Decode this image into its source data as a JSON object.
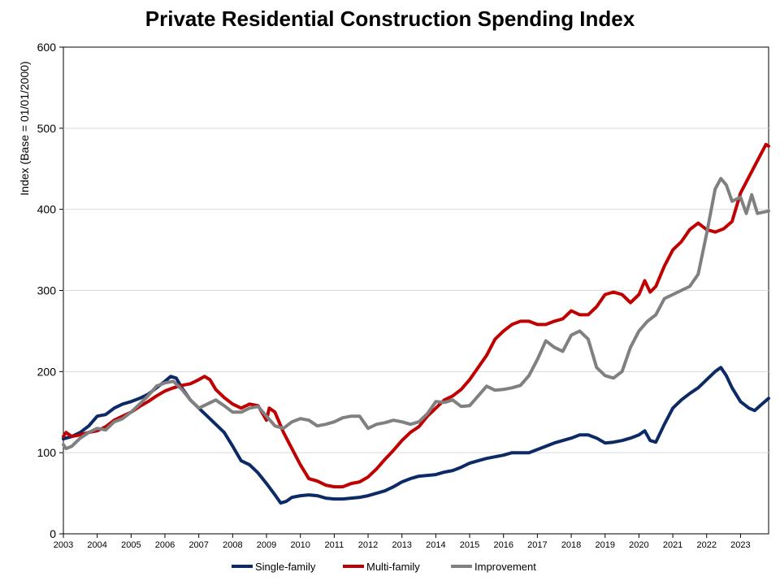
{
  "chart_data": {
    "type": "line",
    "title": "Private Residential Construction Spending Index",
    "xlabel": "",
    "ylabel": "Index  (Base = 01/01/2000)",
    "ylim": [
      0,
      600
    ],
    "yticks": [
      0,
      100,
      200,
      300,
      400,
      500,
      600
    ],
    "xlim": [
      2003.0,
      2023.83
    ],
    "xticks": [
      "2003",
      "2004",
      "2005",
      "2006",
      "2007",
      "2008",
      "2009",
      "2010",
      "2011",
      "2012",
      "2013",
      "2014",
      "2015",
      "2016",
      "2017",
      "2018",
      "2019",
      "2020",
      "2021",
      "2022",
      "2023"
    ],
    "grid": "horizontal",
    "legend_position": "bottom",
    "series": [
      {
        "name": "Single-family",
        "color": "#0c2a66",
        "points": [
          [
            2003.0,
            117
          ],
          [
            2003.25,
            120
          ],
          [
            2003.5,
            125
          ],
          [
            2003.75,
            133
          ],
          [
            2004.0,
            145
          ],
          [
            2004.25,
            147
          ],
          [
            2004.5,
            155
          ],
          [
            2004.75,
            160
          ],
          [
            2005.0,
            163
          ],
          [
            2005.25,
            167
          ],
          [
            2005.5,
            172
          ],
          [
            2005.75,
            180
          ],
          [
            2006.0,
            188
          ],
          [
            2006.17,
            194
          ],
          [
            2006.33,
            192
          ],
          [
            2006.5,
            180
          ],
          [
            2006.75,
            165
          ],
          [
            2007.0,
            155
          ],
          [
            2007.25,
            145
          ],
          [
            2007.5,
            135
          ],
          [
            2007.75,
            125
          ],
          [
            2008.0,
            108
          ],
          [
            2008.25,
            90
          ],
          [
            2008.5,
            85
          ],
          [
            2008.75,
            75
          ],
          [
            2009.0,
            62
          ],
          [
            2009.25,
            48
          ],
          [
            2009.42,
            38
          ],
          [
            2009.58,
            40
          ],
          [
            2009.75,
            45
          ],
          [
            2010.0,
            47
          ],
          [
            2010.25,
            48
          ],
          [
            2010.5,
            47
          ],
          [
            2010.75,
            44
          ],
          [
            2011.0,
            43
          ],
          [
            2011.25,
            43
          ],
          [
            2011.5,
            44
          ],
          [
            2011.75,
            45
          ],
          [
            2012.0,
            47
          ],
          [
            2012.25,
            50
          ],
          [
            2012.5,
            53
          ],
          [
            2012.75,
            58
          ],
          [
            2013.0,
            64
          ],
          [
            2013.25,
            68
          ],
          [
            2013.5,
            71
          ],
          [
            2013.75,
            72
          ],
          [
            2014.0,
            73
          ],
          [
            2014.25,
            76
          ],
          [
            2014.5,
            78
          ],
          [
            2014.75,
            82
          ],
          [
            2015.0,
            87
          ],
          [
            2015.25,
            90
          ],
          [
            2015.5,
            93
          ],
          [
            2015.75,
            95
          ],
          [
            2016.0,
            97
          ],
          [
            2016.25,
            100
          ],
          [
            2016.5,
            100
          ],
          [
            2016.75,
            100
          ],
          [
            2017.0,
            104
          ],
          [
            2017.25,
            108
          ],
          [
            2017.5,
            112
          ],
          [
            2017.75,
            115
          ],
          [
            2018.0,
            118
          ],
          [
            2018.25,
            122
          ],
          [
            2018.5,
            122
          ],
          [
            2018.75,
            118
          ],
          [
            2019.0,
            112
          ],
          [
            2019.25,
            113
          ],
          [
            2019.5,
            115
          ],
          [
            2019.75,
            118
          ],
          [
            2020.0,
            122
          ],
          [
            2020.17,
            127
          ],
          [
            2020.33,
            115
          ],
          [
            2020.5,
            113
          ],
          [
            2020.75,
            135
          ],
          [
            2021.0,
            155
          ],
          [
            2021.25,
            165
          ],
          [
            2021.5,
            173
          ],
          [
            2021.75,
            180
          ],
          [
            2022.0,
            190
          ],
          [
            2022.25,
            200
          ],
          [
            2022.42,
            205
          ],
          [
            2022.58,
            195
          ],
          [
            2022.75,
            180
          ],
          [
            2023.0,
            163
          ],
          [
            2023.25,
            155
          ],
          [
            2023.42,
            152
          ],
          [
            2023.58,
            158
          ],
          [
            2023.83,
            167
          ]
        ]
      },
      {
        "name": "Multi-family",
        "color": "#c00000",
        "points": [
          [
            2003.0,
            120
          ],
          [
            2003.08,
            125
          ],
          [
            2003.25,
            120
          ],
          [
            2003.5,
            122
          ],
          [
            2003.75,
            125
          ],
          [
            2004.0,
            127
          ],
          [
            2004.25,
            132
          ],
          [
            2004.5,
            140
          ],
          [
            2004.75,
            145
          ],
          [
            2005.0,
            150
          ],
          [
            2005.25,
            157
          ],
          [
            2005.5,
            163
          ],
          [
            2005.75,
            170
          ],
          [
            2006.0,
            176
          ],
          [
            2006.25,
            180
          ],
          [
            2006.5,
            183
          ],
          [
            2006.75,
            185
          ],
          [
            2007.0,
            190
          ],
          [
            2007.17,
            194
          ],
          [
            2007.33,
            190
          ],
          [
            2007.5,
            178
          ],
          [
            2007.75,
            168
          ],
          [
            2008.0,
            160
          ],
          [
            2008.25,
            155
          ],
          [
            2008.5,
            160
          ],
          [
            2008.75,
            158
          ],
          [
            2009.0,
            140
          ],
          [
            2009.08,
            155
          ],
          [
            2009.25,
            150
          ],
          [
            2009.5,
            125
          ],
          [
            2009.75,
            105
          ],
          [
            2010.0,
            85
          ],
          [
            2010.25,
            68
          ],
          [
            2010.5,
            65
          ],
          [
            2010.75,
            60
          ],
          [
            2011.0,
            58
          ],
          [
            2011.25,
            58
          ],
          [
            2011.5,
            62
          ],
          [
            2011.75,
            64
          ],
          [
            2012.0,
            70
          ],
          [
            2012.25,
            80
          ],
          [
            2012.5,
            92
          ],
          [
            2012.75,
            103
          ],
          [
            2013.0,
            115
          ],
          [
            2013.25,
            125
          ],
          [
            2013.5,
            132
          ],
          [
            2013.75,
            145
          ],
          [
            2014.0,
            155
          ],
          [
            2014.25,
            165
          ],
          [
            2014.5,
            170
          ],
          [
            2014.75,
            178
          ],
          [
            2015.0,
            190
          ],
          [
            2015.25,
            205
          ],
          [
            2015.5,
            220
          ],
          [
            2015.75,
            240
          ],
          [
            2016.0,
            250
          ],
          [
            2016.25,
            258
          ],
          [
            2016.5,
            262
          ],
          [
            2016.75,
            262
          ],
          [
            2017.0,
            258
          ],
          [
            2017.25,
            258
          ],
          [
            2017.5,
            262
          ],
          [
            2017.75,
            265
          ],
          [
            2018.0,
            275
          ],
          [
            2018.25,
            270
          ],
          [
            2018.5,
            270
          ],
          [
            2018.75,
            280
          ],
          [
            2019.0,
            295
          ],
          [
            2019.25,
            298
          ],
          [
            2019.5,
            295
          ],
          [
            2019.75,
            285
          ],
          [
            2020.0,
            295
          ],
          [
            2020.17,
            312
          ],
          [
            2020.33,
            298
          ],
          [
            2020.5,
            305
          ],
          [
            2020.75,
            330
          ],
          [
            2021.0,
            350
          ],
          [
            2021.25,
            360
          ],
          [
            2021.5,
            375
          ],
          [
            2021.75,
            383
          ],
          [
            2022.0,
            375
          ],
          [
            2022.25,
            372
          ],
          [
            2022.5,
            376
          ],
          [
            2022.75,
            385
          ],
          [
            2023.0,
            420
          ],
          [
            2023.25,
            440
          ],
          [
            2023.5,
            460
          ],
          [
            2023.75,
            480
          ],
          [
            2023.83,
            478
          ]
        ]
      },
      {
        "name": "Improvement",
        "color": "#808080",
        "points": [
          [
            2003.0,
            110
          ],
          [
            2003.08,
            105
          ],
          [
            2003.25,
            108
          ],
          [
            2003.5,
            118
          ],
          [
            2003.75,
            125
          ],
          [
            2004.0,
            130
          ],
          [
            2004.25,
            128
          ],
          [
            2004.5,
            138
          ],
          [
            2004.75,
            142
          ],
          [
            2005.0,
            150
          ],
          [
            2005.25,
            160
          ],
          [
            2005.5,
            170
          ],
          [
            2005.75,
            182
          ],
          [
            2006.0,
            186
          ],
          [
            2006.25,
            188
          ],
          [
            2006.5,
            178
          ],
          [
            2006.75,
            165
          ],
          [
            2007.0,
            155
          ],
          [
            2007.25,
            160
          ],
          [
            2007.5,
            165
          ],
          [
            2007.75,
            158
          ],
          [
            2008.0,
            150
          ],
          [
            2008.25,
            150
          ],
          [
            2008.5,
            155
          ],
          [
            2008.75,
            157
          ],
          [
            2009.0,
            145
          ],
          [
            2009.25,
            133
          ],
          [
            2009.5,
            130
          ],
          [
            2009.75,
            138
          ],
          [
            2010.0,
            142
          ],
          [
            2010.25,
            140
          ],
          [
            2010.5,
            133
          ],
          [
            2010.75,
            135
          ],
          [
            2011.0,
            138
          ],
          [
            2011.25,
            143
          ],
          [
            2011.5,
            145
          ],
          [
            2011.75,
            145
          ],
          [
            2012.0,
            130
          ],
          [
            2012.25,
            135
          ],
          [
            2012.5,
            137
          ],
          [
            2012.75,
            140
          ],
          [
            2013.0,
            138
          ],
          [
            2013.25,
            135
          ],
          [
            2013.5,
            138
          ],
          [
            2013.75,
            148
          ],
          [
            2014.0,
            163
          ],
          [
            2014.25,
            162
          ],
          [
            2014.5,
            165
          ],
          [
            2014.75,
            157
          ],
          [
            2015.0,
            158
          ],
          [
            2015.25,
            170
          ],
          [
            2015.5,
            182
          ],
          [
            2015.75,
            177
          ],
          [
            2016.0,
            178
          ],
          [
            2016.25,
            180
          ],
          [
            2016.5,
            183
          ],
          [
            2016.75,
            195
          ],
          [
            2017.0,
            215
          ],
          [
            2017.25,
            238
          ],
          [
            2017.5,
            230
          ],
          [
            2017.75,
            225
          ],
          [
            2018.0,
            245
          ],
          [
            2018.25,
            250
          ],
          [
            2018.5,
            240
          ],
          [
            2018.75,
            205
          ],
          [
            2019.0,
            195
          ],
          [
            2019.25,
            192
          ],
          [
            2019.5,
            200
          ],
          [
            2019.75,
            230
          ],
          [
            2020.0,
            250
          ],
          [
            2020.25,
            262
          ],
          [
            2020.5,
            270
          ],
          [
            2020.75,
            290
          ],
          [
            2021.0,
            295
          ],
          [
            2021.25,
            300
          ],
          [
            2021.5,
            305
          ],
          [
            2021.75,
            320
          ],
          [
            2022.0,
            370
          ],
          [
            2022.25,
            425
          ],
          [
            2022.42,
            438
          ],
          [
            2022.58,
            430
          ],
          [
            2022.75,
            410
          ],
          [
            2023.0,
            415
          ],
          [
            2023.17,
            395
          ],
          [
            2023.33,
            418
          ],
          [
            2023.5,
            395
          ],
          [
            2023.83,
            398
          ]
        ]
      }
    ]
  }
}
